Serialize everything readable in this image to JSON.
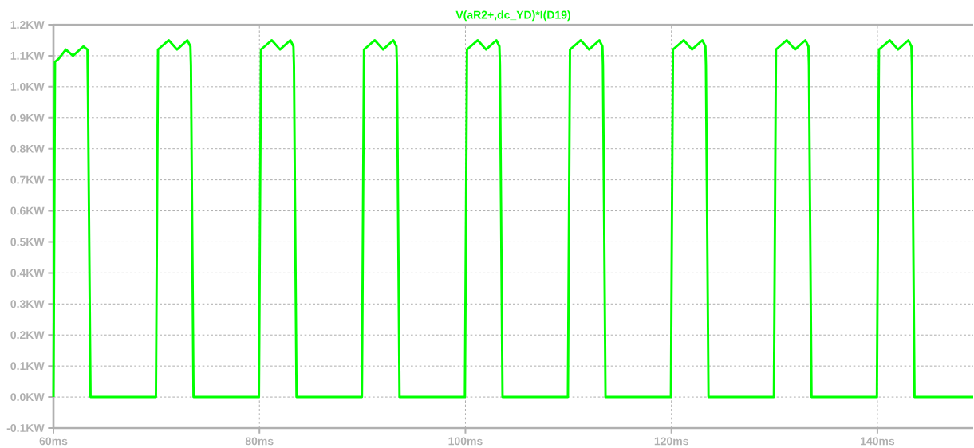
{
  "chart_data": {
    "type": "line",
    "xlim": [
      60,
      149.3
    ],
    "ylim": [
      -0.1,
      1.2
    ],
    "xticks": [
      {
        "value": 60,
        "label": "60ms"
      },
      {
        "value": 80,
        "label": "80ms"
      },
      {
        "value": 100,
        "label": "100ms"
      },
      {
        "value": 120,
        "label": "120ms"
      },
      {
        "value": 140,
        "label": "140ms"
      }
    ],
    "yticks": [
      {
        "value": -0.1,
        "label": "-0.1KW"
      },
      {
        "value": 0,
        "label": "0.0KW"
      },
      {
        "value": 0.1,
        "label": "0.1KW"
      },
      {
        "value": 0.2,
        "label": "0.2KW"
      },
      {
        "value": 0.3,
        "label": "0.3KW"
      },
      {
        "value": 0.4,
        "label": "0.4KW"
      },
      {
        "value": 0.5,
        "label": "0.5KW"
      },
      {
        "value": 0.6,
        "label": "0.6KW"
      },
      {
        "value": 0.7,
        "label": "0.7KW"
      },
      {
        "value": 0.8,
        "label": "0.8KW"
      },
      {
        "value": 0.9,
        "label": "0.9KW"
      },
      {
        "value": 1.0,
        "label": "1.0KW"
      },
      {
        "value": 1.1,
        "label": "1.1KW"
      },
      {
        "value": 1.2,
        "label": "1.2KW"
      }
    ],
    "grid": true,
    "legend": false,
    "marker": "none",
    "line_style": "solid",
    "series": [
      {
        "name": "V(aR2+,dc_YD)*I(D19)",
        "color": "#00ff00",
        "x": [
          60,
          60.15,
          60.5,
          61.2,
          61.9,
          62.9,
          63.3,
          63.35,
          63.6,
          69.95,
          70.15,
          70.5,
          71.2,
          72.0,
          73.0,
          73.3,
          73.35,
          73.6,
          79.95,
          80.15,
          80.5,
          81.2,
          82.0,
          83.0,
          83.3,
          83.35,
          83.6,
          89.95,
          90.15,
          90.5,
          91.2,
          92.0,
          93.0,
          93.3,
          93.35,
          93.6,
          99.95,
          100.15,
          100.5,
          101.2,
          102.0,
          103.0,
          103.3,
          103.35,
          103.6,
          109.95,
          110.15,
          110.5,
          111.2,
          112.0,
          113.0,
          113.3,
          113.35,
          113.6,
          119.95,
          120.15,
          120.5,
          121.2,
          122.0,
          123.0,
          123.3,
          123.35,
          123.6,
          129.95,
          130.15,
          130.5,
          131.2,
          132.0,
          133.0,
          133.3,
          133.35,
          133.6,
          139.95,
          140.15,
          140.5,
          141.2,
          142.0,
          143.0,
          143.3,
          143.35,
          143.6,
          149.3
        ],
        "values": [
          0,
          1.08,
          1.09,
          1.12,
          1.1,
          1.13,
          1.12,
          0.97,
          0,
          0,
          1.12,
          1.13,
          1.15,
          1.12,
          1.15,
          1.13,
          1.07,
          0,
          0,
          1.12,
          1.13,
          1.15,
          1.12,
          1.15,
          1.13,
          1.07,
          0,
          0,
          1.12,
          1.13,
          1.15,
          1.12,
          1.15,
          1.13,
          1.07,
          0,
          0,
          1.12,
          1.13,
          1.15,
          1.12,
          1.15,
          1.13,
          1.07,
          0,
          0,
          1.12,
          1.13,
          1.15,
          1.12,
          1.15,
          1.13,
          1.07,
          0,
          0,
          1.12,
          1.13,
          1.15,
          1.12,
          1.15,
          1.13,
          1.07,
          0,
          0,
          1.12,
          1.13,
          1.15,
          1.12,
          1.15,
          1.13,
          1.07,
          0,
          0,
          1.12,
          1.13,
          1.15,
          1.12,
          1.15,
          1.13,
          1.07,
          0,
          0
        ]
      }
    ]
  }
}
